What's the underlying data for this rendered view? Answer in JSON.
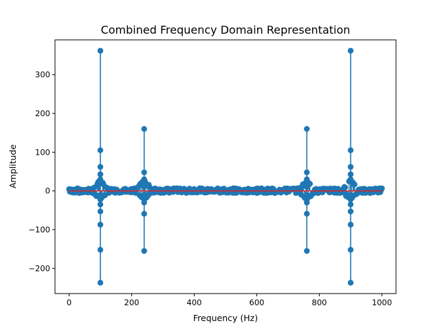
{
  "chart_data": {
    "type": "scatter",
    "plot_style": "stem",
    "title": "Combined Frequency Domain Representation",
    "xlabel": "Frequency (Hz)",
    "ylabel": "Amplitude",
    "xlim": [
      -45,
      1045
    ],
    "ylim": [
      -265,
      390
    ],
    "xticks": [
      0,
      200,
      400,
      600,
      800,
      1000
    ],
    "yticks": [
      -200,
      -100,
      0,
      100,
      200,
      300
    ],
    "xtick_labels": [
      "0",
      "200",
      "400",
      "600",
      "800",
      "1000"
    ],
    "ytick_labels": [
      "−200",
      "−100",
      "0",
      "100",
      "200",
      "300"
    ],
    "grid": false,
    "legend": "none",
    "baseline_y": 0,
    "colors": {
      "marker": "#1f77b4",
      "baseline": "#d62728"
    },
    "peaks": [
      {
        "x": 100,
        "values": [
          362,
          105,
          62,
          43,
          30,
          -10,
          -22,
          -35,
          -53,
          -87,
          -152,
          -237
        ]
      },
      {
        "x": 240,
        "values": [
          160,
          48,
          30,
          18,
          10,
          -10,
          -18,
          -30,
          -59,
          -155
        ]
      },
      {
        "x": 760,
        "values": [
          160,
          48,
          30,
          18,
          10,
          -10,
          -18,
          -30,
          -59,
          -155
        ]
      },
      {
        "x": 900,
        "values": [
          362,
          105,
          62,
          43,
          30,
          -10,
          -22,
          -35,
          -53,
          -87,
          -152,
          -237
        ]
      }
    ],
    "noise_band": {
      "x_min": 0,
      "x_max": 1000,
      "typical_amplitude": 5
    }
  }
}
